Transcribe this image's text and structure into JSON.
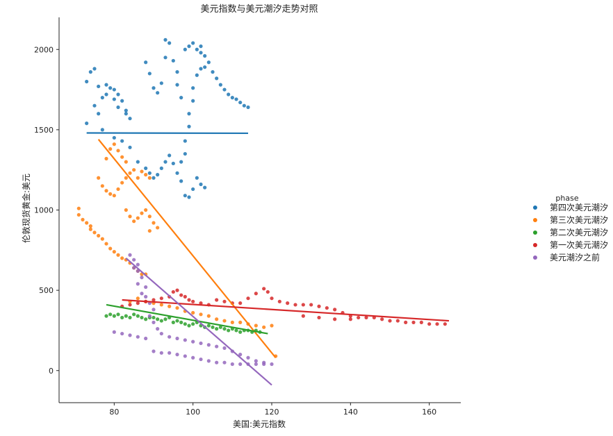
{
  "chart_data": {
    "type": "scatter",
    "title": "美元指数与美元潮汐走势对照",
    "xlabel": "美国:美元指数",
    "ylabel": "伦敦现货黄金:美元",
    "xlim": [
      66,
      168
    ],
    "ylim": [
      -200,
      2200
    ],
    "xticks": [
      80,
      100,
      120,
      140,
      160
    ],
    "yticks": [
      0,
      500,
      1000,
      1500,
      2000
    ],
    "grid": false,
    "legend": {
      "title": "phase",
      "placement": "right"
    },
    "series": [
      {
        "name": "第四次美元潮汐",
        "color": "#1f77b4",
        "points": [
          [
            73,
            1540
          ],
          [
            73,
            1800
          ],
          [
            74,
            1860
          ],
          [
            75,
            1880
          ],
          [
            75,
            1650
          ],
          [
            76,
            1600
          ],
          [
            76,
            1770
          ],
          [
            77,
            1700
          ],
          [
            77,
            1500
          ],
          [
            78,
            1720
          ],
          [
            78,
            1780
          ],
          [
            79,
            1760
          ],
          [
            80,
            1750
          ],
          [
            80,
            1690
          ],
          [
            81,
            1640
          ],
          [
            81,
            1720
          ],
          [
            82,
            1680
          ],
          [
            83,
            1600
          ],
          [
            83,
            1620
          ],
          [
            84,
            1570
          ],
          [
            80,
            1450
          ],
          [
            82,
            1430
          ],
          [
            84,
            1390
          ],
          [
            86,
            1300
          ],
          [
            88,
            1260
          ],
          [
            89,
            1230
          ],
          [
            90,
            1200
          ],
          [
            91,
            1220
          ],
          [
            92,
            1260
          ],
          [
            93,
            1300
          ],
          [
            94,
            1340
          ],
          [
            95,
            1290
          ],
          [
            96,
            1230
          ],
          [
            97,
            1180
          ],
          [
            98,
            1090
          ],
          [
            99,
            1080
          ],
          [
            100,
            1130
          ],
          [
            101,
            1200
          ],
          [
            102,
            1160
          ],
          [
            103,
            1140
          ],
          [
            98,
            1350
          ],
          [
            98,
            1430
          ],
          [
            99,
            1520
          ],
          [
            99,
            1600
          ],
          [
            100,
            1680
          ],
          [
            100,
            1760
          ],
          [
            101,
            1840
          ],
          [
            102,
            1880
          ],
          [
            103,
            1960
          ],
          [
            104,
            1920
          ],
          [
            105,
            1860
          ],
          [
            106,
            1820
          ],
          [
            107,
            1780
          ],
          [
            108,
            1750
          ],
          [
            109,
            1720
          ],
          [
            110,
            1700
          ],
          [
            111,
            1690
          ],
          [
            112,
            1670
          ],
          [
            113,
            1650
          ],
          [
            114,
            1640
          ],
          [
            88,
            1920
          ],
          [
            89,
            1850
          ],
          [
            90,
            1760
          ],
          [
            91,
            1730
          ],
          [
            92,
            1790
          ],
          [
            93,
            2060
          ],
          [
            93,
            1950
          ],
          [
            94,
            2040
          ],
          [
            95,
            1930
          ],
          [
            96,
            1860
          ],
          [
            96,
            1780
          ],
          [
            97,
            1700
          ],
          [
            98,
            2000
          ],
          [
            99,
            2020
          ],
          [
            100,
            2040
          ],
          [
            101,
            2000
          ],
          [
            102,
            2020
          ],
          [
            102,
            1980
          ],
          [
            103,
            1890
          ],
          [
            97,
            1300
          ]
        ],
        "fit": [
          [
            73,
            1480
          ],
          [
            114,
            1478
          ]
        ]
      },
      {
        "name": "第三次美元潮汐",
        "color": "#ff7f0e",
        "points": [
          [
            71,
            1010
          ],
          [
            71,
            970
          ],
          [
            72,
            940
          ],
          [
            73,
            920
          ],
          [
            74,
            900
          ],
          [
            74,
            880
          ],
          [
            75,
            860
          ],
          [
            76,
            840
          ],
          [
            77,
            820
          ],
          [
            78,
            790
          ],
          [
            79,
            760
          ],
          [
            80,
            740
          ],
          [
            81,
            720
          ],
          [
            82,
            700
          ],
          [
            83,
            690
          ],
          [
            84,
            670
          ],
          [
            85,
            640
          ],
          [
            86,
            620
          ],
          [
            87,
            600
          ],
          [
            88,
            600
          ],
          [
            76,
            1200
          ],
          [
            77,
            1150
          ],
          [
            78,
            1120
          ],
          [
            79,
            1100
          ],
          [
            80,
            1090
          ],
          [
            81,
            1130
          ],
          [
            82,
            1170
          ],
          [
            83,
            1200
          ],
          [
            84,
            1230
          ],
          [
            85,
            1250
          ],
          [
            86,
            1200
          ],
          [
            87,
            1240
          ],
          [
            88,
            1220
          ],
          [
            89,
            1200
          ],
          [
            78,
            1320
          ],
          [
            79,
            1380
          ],
          [
            80,
            1410
          ],
          [
            81,
            1370
          ],
          [
            82,
            1330
          ],
          [
            83,
            1300
          ],
          [
            83,
            1000
          ],
          [
            84,
            960
          ],
          [
            85,
            930
          ],
          [
            86,
            950
          ],
          [
            87,
            980
          ],
          [
            88,
            1000
          ],
          [
            89,
            960
          ],
          [
            90,
            920
          ],
          [
            91,
            890
          ],
          [
            89,
            870
          ],
          [
            84,
            430
          ],
          [
            86,
            450
          ],
          [
            88,
            430
          ],
          [
            90,
            420
          ],
          [
            92,
            410
          ],
          [
            94,
            400
          ],
          [
            96,
            390
          ],
          [
            98,
            370
          ],
          [
            100,
            360
          ],
          [
            102,
            350
          ],
          [
            104,
            340
          ],
          [
            106,
            320
          ],
          [
            108,
            310
          ],
          [
            110,
            300
          ],
          [
            112,
            300
          ],
          [
            114,
            290
          ],
          [
            116,
            280
          ],
          [
            118,
            270
          ],
          [
            120,
            280
          ],
          [
            121,
            90
          ]
        ],
        "fit": [
          [
            76,
            1440
          ],
          [
            121,
            80
          ]
        ]
      },
      {
        "name": "第二次美元潮汐",
        "color": "#2ca02c",
        "points": [
          [
            78,
            340
          ],
          [
            79,
            350
          ],
          [
            80,
            340
          ],
          [
            81,
            350
          ],
          [
            82,
            330
          ],
          [
            83,
            340
          ],
          [
            84,
            330
          ],
          [
            85,
            350
          ],
          [
            86,
            340
          ],
          [
            87,
            330
          ],
          [
            88,
            320
          ],
          [
            89,
            330
          ],
          [
            90,
            330
          ],
          [
            91,
            320
          ],
          [
            92,
            310
          ],
          [
            93,
            320
          ],
          [
            94,
            330
          ],
          [
            95,
            300
          ],
          [
            96,
            310
          ],
          [
            97,
            300
          ],
          [
            98,
            290
          ],
          [
            99,
            280
          ],
          [
            100,
            290
          ],
          [
            101,
            300
          ],
          [
            102,
            280
          ],
          [
            103,
            270
          ],
          [
            104,
            280
          ],
          [
            105,
            270
          ],
          [
            106,
            260
          ],
          [
            107,
            270
          ],
          [
            108,
            260
          ],
          [
            109,
            250
          ],
          [
            110,
            260
          ],
          [
            111,
            250
          ],
          [
            112,
            240
          ],
          [
            113,
            250
          ],
          [
            114,
            250
          ],
          [
            115,
            240
          ],
          [
            116,
            250
          ],
          [
            117,
            240
          ]
        ],
        "fit": [
          [
            78,
            410
          ],
          [
            119,
            230
          ]
        ]
      },
      {
        "name": "第一次美元潮汐",
        "color": "#d62728",
        "points": [
          [
            82,
            400
          ],
          [
            84,
            410
          ],
          [
            86,
            420
          ],
          [
            88,
            430
          ],
          [
            90,
            440
          ],
          [
            92,
            450
          ],
          [
            94,
            460
          ],
          [
            95,
            490
          ],
          [
            96,
            500
          ],
          [
            97,
            470
          ],
          [
            98,
            460
          ],
          [
            99,
            440
          ],
          [
            100,
            430
          ],
          [
            102,
            420
          ],
          [
            104,
            410
          ],
          [
            106,
            440
          ],
          [
            108,
            430
          ],
          [
            110,
            420
          ],
          [
            112,
            420
          ],
          [
            114,
            450
          ],
          [
            116,
            480
          ],
          [
            118,
            510
          ],
          [
            119,
            490
          ],
          [
            120,
            450
          ],
          [
            122,
            430
          ],
          [
            124,
            420
          ],
          [
            126,
            410
          ],
          [
            128,
            410
          ],
          [
            130,
            410
          ],
          [
            132,
            400
          ],
          [
            134,
            390
          ],
          [
            136,
            380
          ],
          [
            138,
            360
          ],
          [
            140,
            340
          ],
          [
            142,
            330
          ],
          [
            144,
            330
          ],
          [
            146,
            330
          ],
          [
            148,
            320
          ],
          [
            150,
            310
          ],
          [
            152,
            310
          ],
          [
            154,
            300
          ],
          [
            156,
            300
          ],
          [
            158,
            300
          ],
          [
            160,
            290
          ],
          [
            162,
            290
          ],
          [
            164,
            290
          ],
          [
            128,
            340
          ],
          [
            132,
            330
          ],
          [
            136,
            320
          ],
          [
            140,
            320
          ]
        ],
        "fit": [
          [
            82,
            440
          ],
          [
            165,
            310
          ]
        ]
      },
      {
        "name": "美元潮汐之前",
        "color": "#9467bd",
        "points": [
          [
            84,
            720
          ],
          [
            85,
            690
          ],
          [
            86,
            660
          ],
          [
            85,
            640
          ],
          [
            86,
            620
          ],
          [
            87,
            580
          ],
          [
            86,
            540
          ],
          [
            88,
            520
          ],
          [
            87,
            480
          ],
          [
            88,
            460
          ],
          [
            89,
            420
          ],
          [
            90,
            380
          ],
          [
            89,
            340
          ],
          [
            90,
            300
          ],
          [
            91,
            260
          ],
          [
            92,
            230
          ],
          [
            94,
            210
          ],
          [
            96,
            200
          ],
          [
            98,
            190
          ],
          [
            100,
            180
          ],
          [
            102,
            170
          ],
          [
            104,
            160
          ],
          [
            106,
            150
          ],
          [
            108,
            140
          ],
          [
            110,
            120
          ],
          [
            112,
            100
          ],
          [
            114,
            80
          ],
          [
            116,
            60
          ],
          [
            118,
            50
          ],
          [
            120,
            40
          ],
          [
            80,
            240
          ],
          [
            82,
            230
          ],
          [
            84,
            220
          ],
          [
            86,
            210
          ],
          [
            88,
            200
          ],
          [
            90,
            120
          ],
          [
            92,
            110
          ],
          [
            94,
            110
          ],
          [
            96,
            100
          ],
          [
            98,
            90
          ],
          [
            100,
            80
          ],
          [
            102,
            70
          ],
          [
            104,
            60
          ],
          [
            106,
            50
          ],
          [
            108,
            50
          ],
          [
            110,
            40
          ],
          [
            112,
            40
          ],
          [
            114,
            40
          ],
          [
            116,
            40
          ],
          [
            118,
            40
          ]
        ],
        "fit": [
          [
            83,
            700
          ],
          [
            120,
            -90
          ]
        ]
      }
    ]
  }
}
